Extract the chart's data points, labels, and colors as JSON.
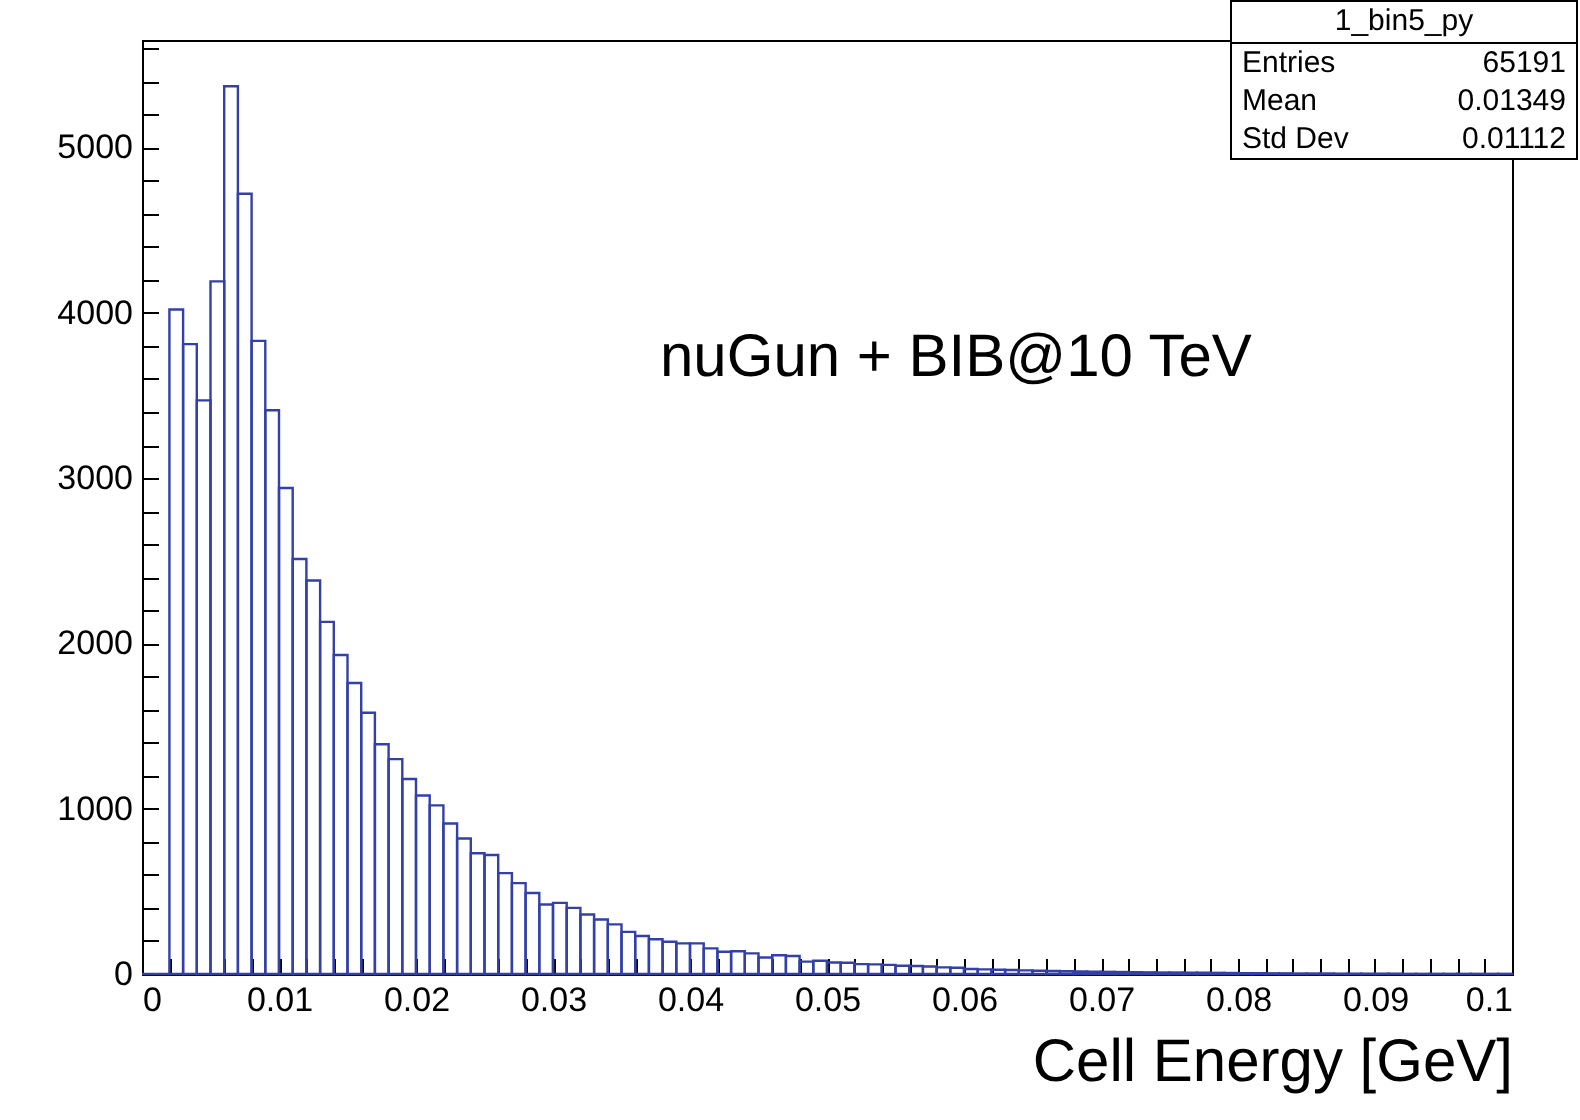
{
  "chart_data": {
    "type": "histogram",
    "xlabel": "Cell Energy [GeV]",
    "color": "#3340a8",
    "bins": [
      0,
      0.001,
      0.002,
      0.003,
      0.004,
      0.005,
      0.006,
      0.007,
      0.008,
      0.009,
      0.01,
      0.011,
      0.012,
      0.013,
      0.014,
      0.015,
      0.016,
      0.017,
      0.018,
      0.019,
      0.02,
      0.021,
      0.022,
      0.023,
      0.024,
      0.025,
      0.026,
      0.027,
      0.028,
      0.029,
      0.03,
      0.031,
      0.032,
      0.033,
      0.034,
      0.035,
      0.036,
      0.037,
      0.038,
      0.039,
      0.04,
      0.041,
      0.042,
      0.043,
      0.044,
      0.045,
      0.046,
      0.047,
      0.048,
      0.049,
      0.05,
      0.051,
      0.052,
      0.053,
      0.054,
      0.055,
      0.056,
      0.057,
      0.058,
      0.059,
      0.06,
      0.061,
      0.062,
      0.063,
      0.064,
      0.065,
      0.066,
      0.067,
      0.068,
      0.069,
      0.07,
      0.071,
      0.072,
      0.073,
      0.074,
      0.075,
      0.076,
      0.077,
      0.078,
      0.079,
      0.08,
      0.081,
      0.082,
      0.083,
      0.084,
      0.085,
      0.086,
      0.087,
      0.088,
      0.089,
      0.09,
      0.091,
      0.092,
      0.093,
      0.094,
      0.095,
      0.096,
      0.097,
      0.098,
      0.099,
      0.1
    ],
    "values": [
      0,
      0,
      4020,
      3810,
      3470,
      4190,
      5370,
      4720,
      3830,
      3410,
      2940,
      2510,
      2380,
      2130,
      1930,
      1760,
      1580,
      1390,
      1300,
      1180,
      1080,
      1020,
      910,
      820,
      730,
      720,
      610,
      550,
      490,
      420,
      430,
      400,
      360,
      330,
      300,
      255,
      230,
      210,
      195,
      185,
      185,
      155,
      135,
      138,
      125,
      100,
      113,
      109,
      75,
      80,
      70,
      68,
      60,
      58,
      55,
      50,
      48,
      45,
      40,
      38,
      30,
      28,
      26,
      24,
      22,
      20,
      18,
      17,
      15,
      14,
      13,
      12,
      11,
      10,
      9,
      9,
      8,
      8,
      7,
      6,
      5,
      5,
      4,
      4,
      3,
      3,
      3,
      2,
      2,
      2,
      2,
      2,
      1,
      1,
      1,
      1,
      1,
      1,
      1,
      1
    ],
    "xlim": [
      0,
      0.1
    ],
    "ylim": [
      0,
      5650
    ],
    "xticks": [
      0,
      {
        "value": 0.002,
        "label": null
      },
      {
        "value": 0.004,
        "label": null
      },
      {
        "value": 0.006,
        "label": null
      },
      {
        "value": 0.008,
        "label": null
      },
      0.01,
      {
        "value": 0.012,
        "label": null
      },
      {
        "value": 0.014,
        "label": null
      },
      {
        "value": 0.016,
        "label": null
      },
      {
        "value": 0.018,
        "label": null
      },
      0.02,
      {
        "value": 0.022,
        "label": null
      },
      {
        "value": 0.024,
        "label": null
      },
      {
        "value": 0.026,
        "label": null
      },
      {
        "value": 0.028,
        "label": null
      },
      0.03,
      {
        "value": 0.032,
        "label": null
      },
      {
        "value": 0.034,
        "label": null
      },
      {
        "value": 0.036,
        "label": null
      },
      {
        "value": 0.038,
        "label": null
      },
      0.04,
      {
        "value": 0.042,
        "label": null
      },
      {
        "value": 0.044,
        "label": null
      },
      {
        "value": 0.046,
        "label": null
      },
      {
        "value": 0.048,
        "label": null
      },
      0.05,
      {
        "value": 0.052,
        "label": null
      },
      {
        "value": 0.054,
        "label": null
      },
      {
        "value": 0.056,
        "label": null
      },
      {
        "value": 0.058,
        "label": null
      },
      0.06,
      {
        "value": 0.062,
        "label": null
      },
      {
        "value": 0.064,
        "label": null
      },
      {
        "value": 0.066,
        "label": null
      },
      {
        "value": 0.068,
        "label": null
      },
      0.07,
      {
        "value": 0.072,
        "label": null
      },
      {
        "value": 0.074,
        "label": null
      },
      {
        "value": 0.076,
        "label": null
      },
      {
        "value": 0.078,
        "label": null
      },
      0.08,
      {
        "value": 0.082,
        "label": null
      },
      {
        "value": 0.084,
        "label": null
      },
      {
        "value": 0.086,
        "label": null
      },
      {
        "value": 0.088,
        "label": null
      },
      0.09,
      {
        "value": 0.092,
        "label": null
      },
      {
        "value": 0.094,
        "label": null
      },
      {
        "value": 0.096,
        "label": null
      },
      {
        "value": 0.098,
        "label": null
      },
      0.1
    ],
    "yticks": [
      0,
      {
        "value": 200,
        "label": null
      },
      {
        "value": 400,
        "label": null
      },
      {
        "value": 600,
        "label": null
      },
      {
        "value": 800,
        "label": null
      },
      1000,
      {
        "value": 1200,
        "label": null
      },
      {
        "value": 1400,
        "label": null
      },
      {
        "value": 1600,
        "label": null
      },
      {
        "value": 1800,
        "label": null
      },
      2000,
      {
        "value": 2200,
        "label": null
      },
      {
        "value": 2400,
        "label": null
      },
      {
        "value": 2600,
        "label": null
      },
      {
        "value": 2800,
        "label": null
      },
      3000,
      {
        "value": 3200,
        "label": null
      },
      {
        "value": 3400,
        "label": null
      },
      {
        "value": 3600,
        "label": null
      },
      {
        "value": 3800,
        "label": null
      },
      4000,
      {
        "value": 4200,
        "label": null
      },
      {
        "value": 4400,
        "label": null
      },
      {
        "value": 4600,
        "label": null
      },
      {
        "value": 4800,
        "label": null
      },
      5000,
      {
        "value": 5200,
        "label": null
      },
      {
        "value": 5400,
        "label": null
      },
      {
        "value": 5600,
        "label": null
      }
    ],
    "annotations": [
      "nuGun + BIB@10 TeV",
      "1_bin5_py",
      "Entries",
      "65191",
      "Mean",
      "0.01349",
      "Std Dev",
      "0.01112"
    ]
  }
}
